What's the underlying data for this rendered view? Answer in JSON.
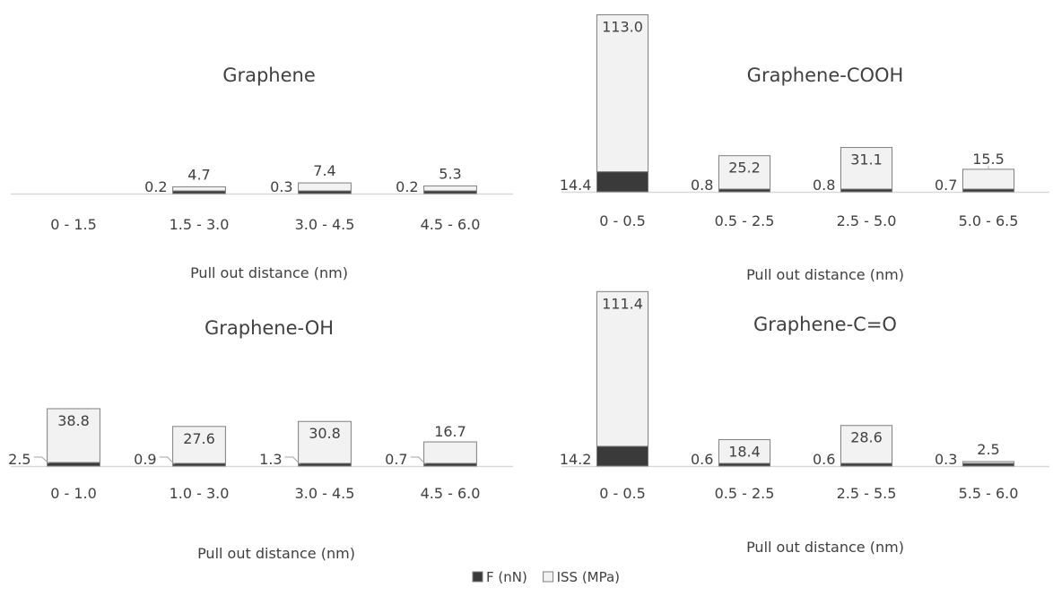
{
  "colors": {
    "force": "#3a3a3a",
    "iss": "#f2f2f2",
    "outline": "#7f7f7f",
    "axis": "#d9d9d9",
    "text": "#404040",
    "text_on_dark": "#ffffff"
  },
  "legend": {
    "position": "bottom-center",
    "items": [
      {
        "label": "F (nN)",
        "color": "#3a3a3a"
      },
      {
        "label": "ISS (MPa)",
        "color": "#f2f2f2"
      }
    ]
  },
  "chart_data": [
    {
      "type": "bar",
      "stacked": true,
      "title": "Graphene",
      "xlabel": "Pull out distance (nm)",
      "categories": [
        "0 - 1.5",
        "1.5 - 3.0",
        "3.0 - 4.5",
        "4.5 - 6.0"
      ],
      "series": [
        {
          "name": "F (nN)",
          "values": [
            0,
            0.2,
            0.3,
            0.2
          ],
          "labels": [
            "",
            "0.2",
            "0.3",
            "0.2"
          ]
        },
        {
          "name": "ISS (MPa)",
          "values": [
            0,
            4.7,
            7.4,
            5.3
          ],
          "labels": [
            "",
            "4.7",
            "7.4",
            "5.3"
          ]
        }
      ]
    },
    {
      "type": "bar",
      "stacked": true,
      "title": "Graphene-COOH",
      "xlabel": "Pull out distance (nm)",
      "categories": [
        "0 - 0.5",
        "0.5 - 2.5",
        "2.5 - 5.0",
        "5.0 - 6.5"
      ],
      "series": [
        {
          "name": "F (nN)",
          "values": [
            14.4,
            0.8,
            0.8,
            0.7
          ],
          "labels": [
            "14.4",
            "0.8",
            "0.8",
            "0.7"
          ]
        },
        {
          "name": "ISS (MPa)",
          "values": [
            113.0,
            25.2,
            31.1,
            15.5
          ],
          "labels": [
            "113.0",
            "25.2",
            "31.1",
            "15.5"
          ]
        }
      ]
    },
    {
      "type": "bar",
      "stacked": true,
      "title": "Graphene-OH",
      "xlabel": "Pull out distance (nm)",
      "categories": [
        "0 - 1.0",
        "1.0 - 3.0",
        "3.0 - 4.5",
        "4.5 - 6.0"
      ],
      "series": [
        {
          "name": "F (nN)",
          "values": [
            2.5,
            0.9,
            1.3,
            0.7
          ],
          "labels": [
            "2.5",
            "0.9",
            "1.3",
            "0.7"
          ]
        },
        {
          "name": "ISS (MPa)",
          "values": [
            38.8,
            27.6,
            30.8,
            16.7
          ],
          "labels": [
            "38.8",
            "27.6",
            "30.8",
            "16.7"
          ]
        }
      ]
    },
    {
      "type": "bar",
      "stacked": true,
      "title": "Graphene-C=O",
      "xlabel": "Pull out distance (nm)",
      "categories": [
        "0 - 0.5",
        "0.5 - 2.5",
        "2.5 - 5.5",
        "5.5 - 6.0"
      ],
      "series": [
        {
          "name": "F (nN)",
          "values": [
            14.2,
            0.6,
            0.6,
            0.3
          ],
          "labels": [
            "14.2",
            "0.6",
            "0.6",
            "0.3"
          ]
        },
        {
          "name": "ISS (MPa)",
          "values": [
            111.4,
            18.4,
            28.6,
            2.5
          ],
          "labels": [
            "111.4",
            "18.4",
            "28.6",
            "2.5"
          ]
        }
      ]
    }
  ]
}
